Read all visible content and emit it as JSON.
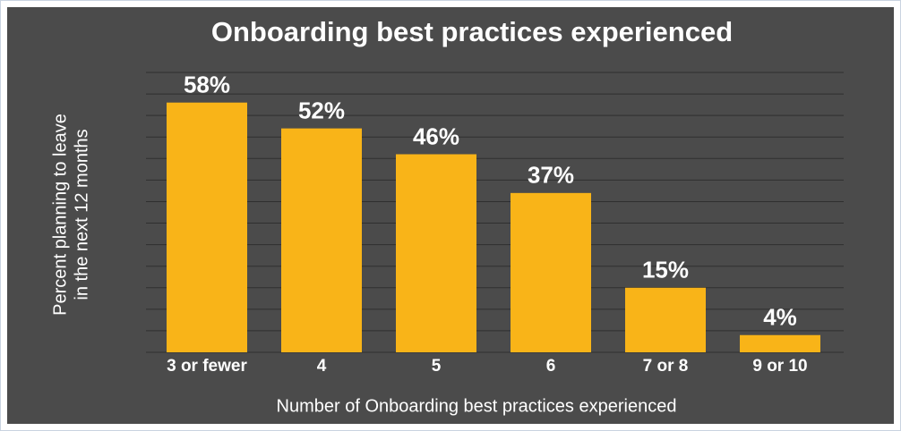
{
  "chart_data": {
    "type": "bar",
    "title": "Onboarding best practices experienced",
    "ylabel": [
      "Percent planning to leave",
      "in the next 12 months"
    ],
    "xlabel": "Number of Onboarding best practices experienced",
    "categories": [
      "3 or fewer",
      "4",
      "5",
      "6",
      "7 or 8",
      "9 or 10"
    ],
    "values": [
      58,
      52,
      46,
      37,
      15,
      4
    ],
    "value_labels": [
      "58%",
      "52%",
      "46%",
      "37%",
      "15%",
      "4%"
    ],
    "color": "#f9b418",
    "ylim": [
      0,
      65
    ],
    "yticks": [
      0,
      5,
      10,
      15,
      20,
      25,
      30,
      35,
      40,
      45,
      50,
      55,
      60,
      65
    ],
    "grid": true
  }
}
